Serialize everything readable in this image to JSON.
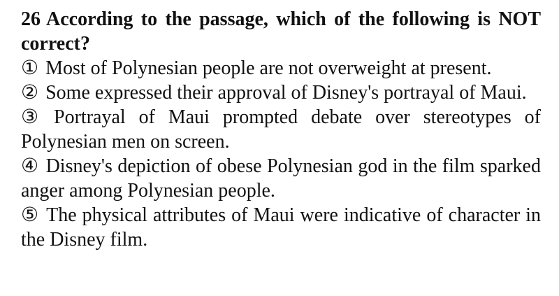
{
  "question": {
    "number": "26",
    "prompt": "According to the passage, which of the following is NOT correct?",
    "options": [
      {
        "marker": "①",
        "text": "Most of Polynesian people are not overweight at present."
      },
      {
        "marker": "②",
        "text": "Some expressed their approval of Disney's portrayal of Maui."
      },
      {
        "marker": "③",
        "text": "Portrayal of Maui prompted debate over stereotypes of Polynesian men on screen."
      },
      {
        "marker": "④",
        "text": "Disney's depiction of obese Polynesian god in the film sparked anger among Polynesian people."
      },
      {
        "marker": "⑤",
        "text": "The physical attributes of Maui were indicative of character in the Disney film."
      }
    ]
  }
}
